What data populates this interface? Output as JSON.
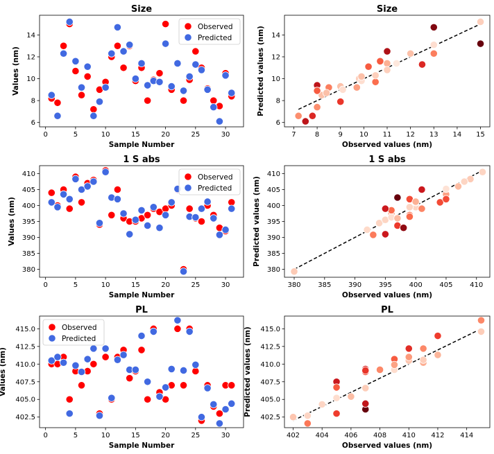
{
  "legend_labels": {
    "observed": "Observed",
    "predicted": "Predicted"
  },
  "colors": {
    "observed": "#ff0000",
    "predicted": "#4169e1",
    "diag": "#000000"
  },
  "chart_data": [
    {
      "id": "size_scatter",
      "type": "scatter",
      "title": "Size",
      "xlabel": "Sample Number",
      "ylabel": "Values (nm)",
      "xlim": [
        -1,
        33
      ],
      "ylim": [
        5.6,
        15.8
      ],
      "xticks": [
        0,
        5,
        10,
        15,
        20,
        25,
        30
      ],
      "yticks": [
        6,
        8,
        10,
        12,
        14
      ],
      "ytick_labels": [
        "6",
        "8",
        "10",
        "12",
        "14"
      ],
      "legend": "top-right",
      "series": [
        {
          "name": "Observed",
          "color": "#ff0000",
          "x": [
            1,
            2,
            3,
            4,
            5,
            6,
            7,
            8,
            9,
            10,
            11,
            12,
            13,
            14,
            15,
            16,
            17,
            18,
            19,
            20,
            21,
            22,
            23,
            24,
            25,
            26,
            27,
            28,
            29,
            30,
            31
          ],
          "y": [
            8.2,
            7.8,
            13.0,
            15.0,
            10.7,
            8.5,
            10.2,
            7.2,
            9.0,
            9.7,
            12.0,
            13.0,
            11.0,
            13.0,
            9.8,
            11.0,
            8.0,
            9.9,
            10.5,
            15.0,
            9.0,
            11.4,
            8.0,
            9.9,
            12.5,
            11.0,
            9.1,
            8.0,
            7.5,
            10.5,
            8.4
          ]
        },
        {
          "name": "Predicted",
          "color": "#4169e1",
          "x": [
            1,
            2,
            3,
            4,
            5,
            6,
            7,
            8,
            9,
            10,
            11,
            12,
            13,
            14,
            15,
            16,
            17,
            18,
            19,
            20,
            21,
            22,
            23,
            24,
            25,
            26,
            27,
            28,
            29,
            30,
            31
          ],
          "y": [
            8.5,
            6.6,
            12.3,
            15.2,
            11.6,
            9.2,
            11.1,
            6.6,
            7.9,
            9.2,
            12.3,
            14.7,
            12.5,
            13.1,
            10.0,
            11.4,
            9.4,
            9.8,
            9.7,
            13.2,
            9.3,
            11.4,
            8.9,
            10.2,
            11.3,
            10.8,
            9.0,
            7.4,
            6.1,
            10.3,
            8.7
          ]
        }
      ]
    },
    {
      "id": "size_parity",
      "type": "scatter",
      "title": "Size",
      "xlabel": "Observed values (nm)",
      "ylabel": "Predicted values (nm)",
      "xlim": [
        6.6,
        15.4
      ],
      "ylim": [
        5.6,
        15.8
      ],
      "xticks": [
        7,
        8,
        9,
        10,
        11,
        12,
        13,
        14,
        15
      ],
      "yticks": [
        6,
        8,
        10,
        12,
        14
      ],
      "ytick_labels": [
        "6",
        "8",
        "10",
        "12",
        "14"
      ],
      "colormap": "Reds",
      "diagonal": [
        [
          7.2,
          7.2
        ],
        [
          15.0,
          15.0
        ]
      ],
      "points": [
        {
          "x": 8.2,
          "y": 8.5
        },
        {
          "x": 7.8,
          "y": 6.6
        },
        {
          "x": 13.0,
          "y": 12.3
        },
        {
          "x": 15.0,
          "y": 15.2
        },
        {
          "x": 10.7,
          "y": 11.6
        },
        {
          "x": 8.5,
          "y": 9.2
        },
        {
          "x": 10.2,
          "y": 11.1
        },
        {
          "x": 7.2,
          "y": 6.6
        },
        {
          "x": 9.0,
          "y": 7.9
        },
        {
          "x": 9.7,
          "y": 9.2
        },
        {
          "x": 12.0,
          "y": 12.3
        },
        {
          "x": 13.0,
          "y": 14.7
        },
        {
          "x": 11.0,
          "y": 12.5
        },
        {
          "x": 13.0,
          "y": 13.1
        },
        {
          "x": 9.8,
          "y": 10.0
        },
        {
          "x": 11.0,
          "y": 11.4
        },
        {
          "x": 8.0,
          "y": 9.4
        },
        {
          "x": 9.9,
          "y": 9.8
        },
        {
          "x": 10.5,
          "y": 9.7
        },
        {
          "x": 15.0,
          "y": 13.2
        },
        {
          "x": 9.0,
          "y": 9.3
        },
        {
          "x": 11.4,
          "y": 11.4
        },
        {
          "x": 8.0,
          "y": 8.9
        },
        {
          "x": 9.9,
          "y": 10.2
        },
        {
          "x": 12.5,
          "y": 11.3
        },
        {
          "x": 11.0,
          "y": 10.8
        },
        {
          "x": 9.1,
          "y": 9.0
        },
        {
          "x": 8.0,
          "y": 7.4
        },
        {
          "x": 7.5,
          "y": 6.1
        },
        {
          "x": 10.5,
          "y": 10.3
        },
        {
          "x": 8.4,
          "y": 8.7
        }
      ]
    },
    {
      "id": "abs_scatter",
      "type": "scatter",
      "title": "1 S abs",
      "xlabel": "Sample Number",
      "ylabel": "Values (nm)",
      "xlim": [
        -1,
        33
      ],
      "ylim": [
        377.5,
        412.5
      ],
      "xticks": [
        0,
        5,
        10,
        15,
        20,
        25,
        30
      ],
      "yticks": [
        380,
        385,
        390,
        395,
        400,
        405,
        410
      ],
      "ytick_labels": [
        "380",
        "385",
        "390",
        "395",
        "400",
        "405",
        "410"
      ],
      "legend": "top-right",
      "series": [
        {
          "name": "Observed",
          "color": "#ff0000",
          "x": [
            1,
            2,
            3,
            4,
            5,
            6,
            7,
            8,
            9,
            10,
            11,
            12,
            13,
            14,
            15,
            16,
            17,
            18,
            19,
            20,
            21,
            22,
            23,
            24,
            25,
            26,
            27,
            28,
            29,
            30,
            31
          ],
          "y": [
            404,
            400,
            405,
            399,
            409,
            401,
            407,
            408,
            394,
            411,
            397,
            405,
            396,
            395,
            395,
            396,
            397,
            399,
            398,
            399,
            400,
            405,
            380,
            399,
            396,
            395,
            400,
            397,
            393,
            392,
            401
          ]
        },
        {
          "name": "Predicted",
          "color": "#4169e1",
          "x": [
            1,
            2,
            3,
            4,
            5,
            6,
            7,
            8,
            9,
            10,
            11,
            12,
            13,
            14,
            15,
            16,
            17,
            18,
            19,
            20,
            21,
            22,
            23,
            24,
            25,
            26,
            27,
            28,
            29,
            30,
            31
          ],
          "y": [
            401,
            399.5,
            403.5,
            402,
            408.3,
            405,
            406,
            407.5,
            394.5,
            410.5,
            402.5,
            402,
            397.5,
            391,
            395.5,
            398.5,
            393.7,
            399.5,
            393,
            397,
            401,
            405.2,
            379.3,
            396.5,
            396.3,
            399,
            401.2,
            396,
            390.8,
            392.4,
            399
          ]
        }
      ]
    },
    {
      "id": "abs_parity",
      "type": "scatter",
      "title": "1 S abs",
      "xlabel": "Observed values (nm)",
      "ylabel": "Predicted values (nm)",
      "xlim": [
        378.4,
        412.2
      ],
      "ylim": [
        377.5,
        412.5
      ],
      "xticks": [
        380,
        385,
        390,
        395,
        400,
        405,
        410
      ],
      "yticks": [
        380,
        385,
        390,
        395,
        400,
        405,
        410
      ],
      "ytick_labels": [
        "380",
        "385",
        "390",
        "395",
        "400",
        "405",
        "410"
      ],
      "colormap": "Reds",
      "diagonal": [
        [
          380,
          380
        ],
        [
          411,
          411
        ]
      ],
      "points": [
        {
          "x": 404,
          "y": 401
        },
        {
          "x": 400,
          "y": 399.5
        },
        {
          "x": 405,
          "y": 403.5
        },
        {
          "x": 399,
          "y": 402
        },
        {
          "x": 409,
          "y": 408.3
        },
        {
          "x": 401,
          "y": 405
        },
        {
          "x": 407,
          "y": 406
        },
        {
          "x": 408,
          "y": 407.5
        },
        {
          "x": 394,
          "y": 394.5
        },
        {
          "x": 411,
          "y": 410.5
        },
        {
          "x": 397,
          "y": 402.5
        },
        {
          "x": 405,
          "y": 402
        },
        {
          "x": 396,
          "y": 397.5
        },
        {
          "x": 395,
          "y": 391
        },
        {
          "x": 395,
          "y": 395.5
        },
        {
          "x": 396,
          "y": 398.5
        },
        {
          "x": 397,
          "y": 393.7
        },
        {
          "x": 399,
          "y": 399.5
        },
        {
          "x": 398,
          "y": 393
        },
        {
          "x": 399,
          "y": 397
        },
        {
          "x": 400,
          "y": 401
        },
        {
          "x": 405,
          "y": 405.2
        },
        {
          "x": 380,
          "y": 379.3
        },
        {
          "x": 399,
          "y": 396.5
        },
        {
          "x": 396,
          "y": 396.3
        },
        {
          "x": 395,
          "y": 399
        },
        {
          "x": 400,
          "y": 401.2
        },
        {
          "x": 397,
          "y": 396
        },
        {
          "x": 393,
          "y": 390.8
        },
        {
          "x": 392,
          "y": 392.4
        },
        {
          "x": 401,
          "y": 399
        }
      ]
    },
    {
      "id": "pl_scatter",
      "type": "scatter",
      "title": "PL",
      "xlabel": "Sample Number",
      "ylabel": "Values (nm)",
      "xlim": [
        -1,
        33
      ],
      "ylim": [
        401.0,
        416.8
      ],
      "xticks": [
        0,
        5,
        10,
        15,
        20,
        25,
        30
      ],
      "yticks": [
        402.5,
        405.0,
        407.5,
        410.0,
        412.5,
        415.0
      ],
      "ytick_labels": [
        "402.5",
        "405.0",
        "407.5",
        "410.0",
        "412.5",
        "415.0"
      ],
      "legend": "top-left",
      "series": [
        {
          "name": "Observed",
          "color": "#ff0000",
          "x": [
            1,
            2,
            3,
            4,
            5,
            6,
            7,
            8,
            9,
            10,
            11,
            12,
            13,
            14,
            15,
            16,
            17,
            18,
            19,
            20,
            21,
            22,
            23,
            24,
            25,
            26,
            27,
            28,
            29,
            30,
            31
          ],
          "y": [
            410,
            410,
            411,
            405,
            409,
            407,
            409,
            410,
            403,
            411,
            405,
            411,
            412,
            408,
            409,
            412,
            405,
            415,
            406,
            405,
            407,
            415,
            407,
            415,
            409,
            402,
            407,
            404,
            403,
            407,
            407
          ]
        },
        {
          "name": "Predicted",
          "color": "#4169e1",
          "x": [
            1,
            2,
            3,
            4,
            5,
            6,
            7,
            8,
            9,
            10,
            11,
            12,
            13,
            14,
            15,
            16,
            17,
            18,
            19,
            20,
            21,
            22,
            23,
            24,
            25,
            26,
            27,
            28,
            29,
            30,
            31
          ],
          "y": [
            410.5,
            411,
            410.2,
            403,
            409.8,
            408.9,
            410.7,
            412.2,
            402.7,
            412.2,
            405.2,
            410.6,
            411.3,
            409.2,
            409.2,
            414,
            407.5,
            414.6,
            405.4,
            406.7,
            409.3,
            416.2,
            409.1,
            414.6,
            409.9,
            402.5,
            406.6,
            404.3,
            401.6,
            403.6,
            404.4
          ]
        }
      ]
    },
    {
      "id": "pl_parity",
      "type": "scatter",
      "title": "PL",
      "xlabel": "Observed values (nm)",
      "ylabel": "Predicted values (nm)",
      "xlim": [
        401.4,
        415.6
      ],
      "ylim": [
        401.0,
        416.8
      ],
      "xticks": [
        402,
        404,
        406,
        408,
        410,
        412,
        414
      ],
      "yticks": [
        402.5,
        405.0,
        407.5,
        410.0,
        412.5,
        415.0
      ],
      "ytick_labels": [
        "402.5",
        "405.0",
        "407.5",
        "410.0",
        "412.5",
        "415.0"
      ],
      "colormap": "Reds",
      "diagonal": [
        [
          402,
          402
        ],
        [
          415,
          415
        ]
      ],
      "points": [
        {
          "x": 410,
          "y": 410.5
        },
        {
          "x": 410,
          "y": 411
        },
        {
          "x": 411,
          "y": 410.2
        },
        {
          "x": 405,
          "y": 403
        },
        {
          "x": 409,
          "y": 409.8
        },
        {
          "x": 407,
          "y": 408.9
        },
        {
          "x": 409,
          "y": 410.7
        },
        {
          "x": 410,
          "y": 412.2
        },
        {
          "x": 403,
          "y": 402.7
        },
        {
          "x": 411,
          "y": 412.2
        },
        {
          "x": 405,
          "y": 405.2
        },
        {
          "x": 411,
          "y": 410.6
        },
        {
          "x": 412,
          "y": 411.3
        },
        {
          "x": 408,
          "y": 409.2
        },
        {
          "x": 409,
          "y": 409.2
        },
        {
          "x": 412,
          "y": 414
        },
        {
          "x": 405,
          "y": 407.5
        },
        {
          "x": 415,
          "y": 414.6
        },
        {
          "x": 406,
          "y": 405.4
        },
        {
          "x": 405,
          "y": 406.7
        },
        {
          "x": 407,
          "y": 409.3
        },
        {
          "x": 415,
          "y": 416.2
        },
        {
          "x": 407,
          "y": 409.1
        },
        {
          "x": 415,
          "y": 414.6
        },
        {
          "x": 409,
          "y": 409.9
        },
        {
          "x": 402,
          "y": 402.5
        },
        {
          "x": 407,
          "y": 406.6
        },
        {
          "x": 404,
          "y": 404.3
        },
        {
          "x": 403,
          "y": 401.6
        },
        {
          "x": 407,
          "y": 403.6
        },
        {
          "x": 407,
          "y": 404.4
        }
      ]
    }
  ]
}
